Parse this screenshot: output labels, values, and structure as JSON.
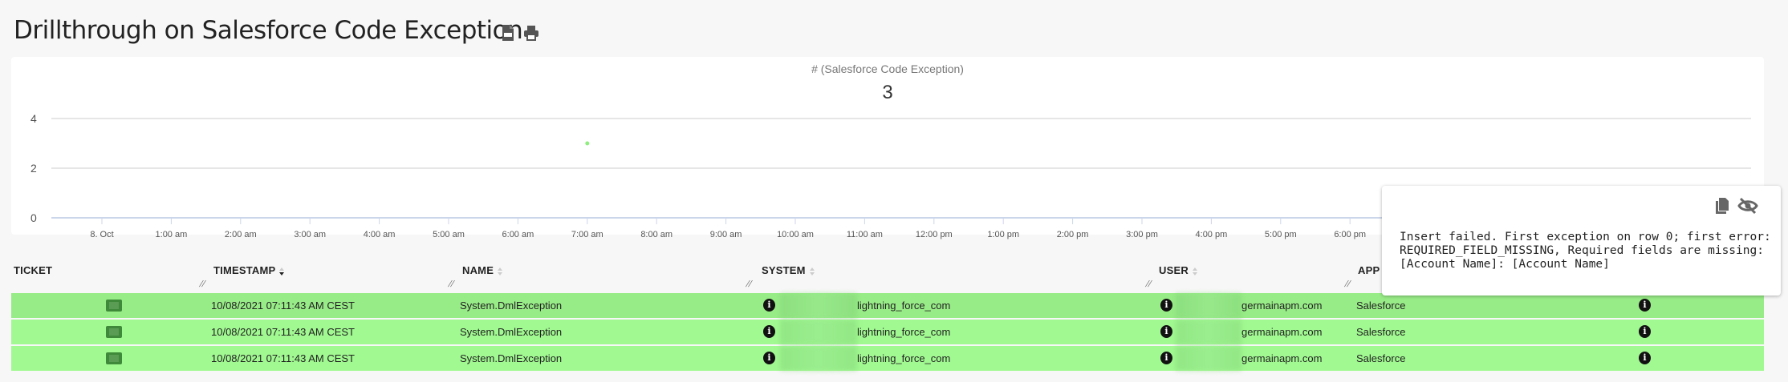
{
  "page": {
    "title": "Drillthrough on Salesforce Code Exception",
    "icons": [
      "csv-file-icon",
      "print-icon"
    ]
  },
  "chart": {
    "subtitle": "# (Salesforce Code Exception)",
    "total": "3"
  },
  "chart_data": {
    "type": "scatter",
    "title": "# (Salesforce Code Exception)",
    "ylim": [
      0,
      4
    ],
    "yticks": [
      "0",
      "2",
      "4"
    ],
    "xticks": [
      "8. Oct",
      "1:00 am",
      "2:00 am",
      "3:00 am",
      "4:00 am",
      "5:00 am",
      "6:00 am",
      "7:00 am",
      "8:00 am",
      "9:00 am",
      "10:00 am",
      "11:00 am",
      "12:00 pm",
      "1:00 pm",
      "2:00 pm",
      "3:00 pm",
      "4:00 pm",
      "5:00 pm",
      "6:00 pm"
    ],
    "xlim": [
      "2021-10-08 00:00",
      "2021-10-09 00:00"
    ],
    "points": [
      {
        "x": "2021-10-08 07:00",
        "y": 3
      }
    ],
    "grid": true,
    "point_color": "#90ee80"
  },
  "table": {
    "columns": [
      "TICKET",
      "TIMESTAMP",
      "NAME",
      "SYSTEM",
      "USER",
      "APP"
    ],
    "rows": [
      {
        "timestamp": "10/08/2021 07:11:43 AM CEST",
        "name": "System.DmlException",
        "system": "lightning_force_com",
        "user": "germainapm.com",
        "app": "Salesforce"
      },
      {
        "timestamp": "10/08/2021 07:11:43 AM CEST",
        "name": "System.DmlException",
        "system": "lightning_force_com",
        "user": "germainapm.com",
        "app": "Salesforce"
      },
      {
        "timestamp": "10/08/2021 07:11:43 AM CEST",
        "name": "System.DmlException",
        "system": "lightning_force_com",
        "user": "germainapm.com",
        "app": "Salesforce"
      }
    ],
    "row_colors": [
      "#98ec87",
      "#a1f991",
      "#a1f991"
    ]
  },
  "tooltip": {
    "text": "Insert failed. First exception on row 0; first error: REQUIRED_FIELD_MISSING, Required fields are missing: [Account Name]: [Account Name]",
    "icons": [
      "copy-icon",
      "eye-slash-icon"
    ]
  }
}
